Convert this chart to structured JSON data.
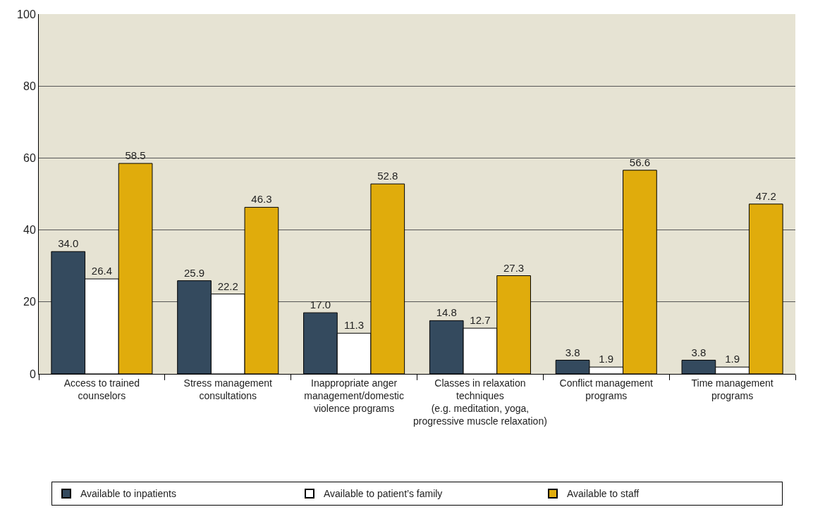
{
  "chart_data": {
    "type": "bar",
    "categories": [
      "Access to trained\ncounselors",
      "Stress management\nconsultations",
      "Inappropriate anger\nmanagement/domestic\nviolence programs",
      "Classes in relaxation\ntechniques\n(e.g. meditation, yoga,\nprogressive muscle relaxation)",
      "Conflict management\nprograms",
      "Time management\nprograms"
    ],
    "series": [
      {
        "name": "Available to inpatients",
        "color": "#344a5e",
        "values": [
          34.0,
          25.9,
          17.0,
          14.8,
          3.8,
          3.8
        ],
        "value_labels": [
          "34.0",
          "25.9",
          "17.0",
          "14.8",
          "3.8",
          "3.8"
        ]
      },
      {
        "name": "Available to patient’s family",
        "color": "#ffffff",
        "values": [
          26.4,
          22.2,
          11.3,
          12.7,
          1.9,
          1.9
        ],
        "value_labels": [
          "26.4",
          "22.2",
          "11.3",
          "12.7",
          "1.9",
          "1.9"
        ]
      },
      {
        "name": "Available to staff",
        "color": "#e0ac0c",
        "values": [
          58.5,
          46.3,
          52.8,
          27.3,
          56.6,
          47.2
        ],
        "value_labels": [
          "58.5",
          "46.3",
          "52.8",
          "27.3",
          "56.6",
          "47.2"
        ]
      }
    ],
    "ylim": [
      0,
      100
    ],
    "yticks": [
      0,
      20,
      40,
      60,
      80,
      100
    ],
    "grid": "y",
    "legend": "bottom"
  }
}
